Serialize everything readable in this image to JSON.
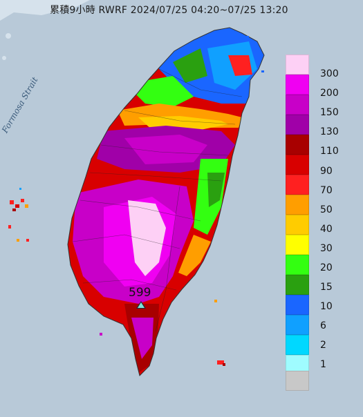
{
  "title": "累積9小時 RWRF 2024/07/25 04:20~07/25 13:20",
  "strait_label": "Formosa Strait",
  "peak_value": "599",
  "legend": [
    {
      "label": "300",
      "color": "#fdd0f5"
    },
    {
      "label": "200",
      "color": "#f000f2"
    },
    {
      "label": "150",
      "color": "#c800c8"
    },
    {
      "label": "130",
      "color": "#a000a8"
    },
    {
      "label": "110",
      "color": "#a80000"
    },
    {
      "label": "90",
      "color": "#d80000"
    },
    {
      "label": "70",
      "color": "#ff2020"
    },
    {
      "label": "50",
      "color": "#ff9e00"
    },
    {
      "label": "40",
      "color": "#ffcc00"
    },
    {
      "label": "30",
      "color": "#ffff00"
    },
    {
      "label": "20",
      "color": "#33ff11"
    },
    {
      "label": "15",
      "color": "#2aa010"
    },
    {
      "label": "10",
      "color": "#1a66ff"
    },
    {
      "label": "6",
      "color": "#10a0ff"
    },
    {
      "label": "2",
      "color": "#00d8ff"
    },
    {
      "label": "1",
      "color": "#9ffcff"
    },
    {
      "label": "",
      "color": "#c8c8c8"
    }
  ]
}
